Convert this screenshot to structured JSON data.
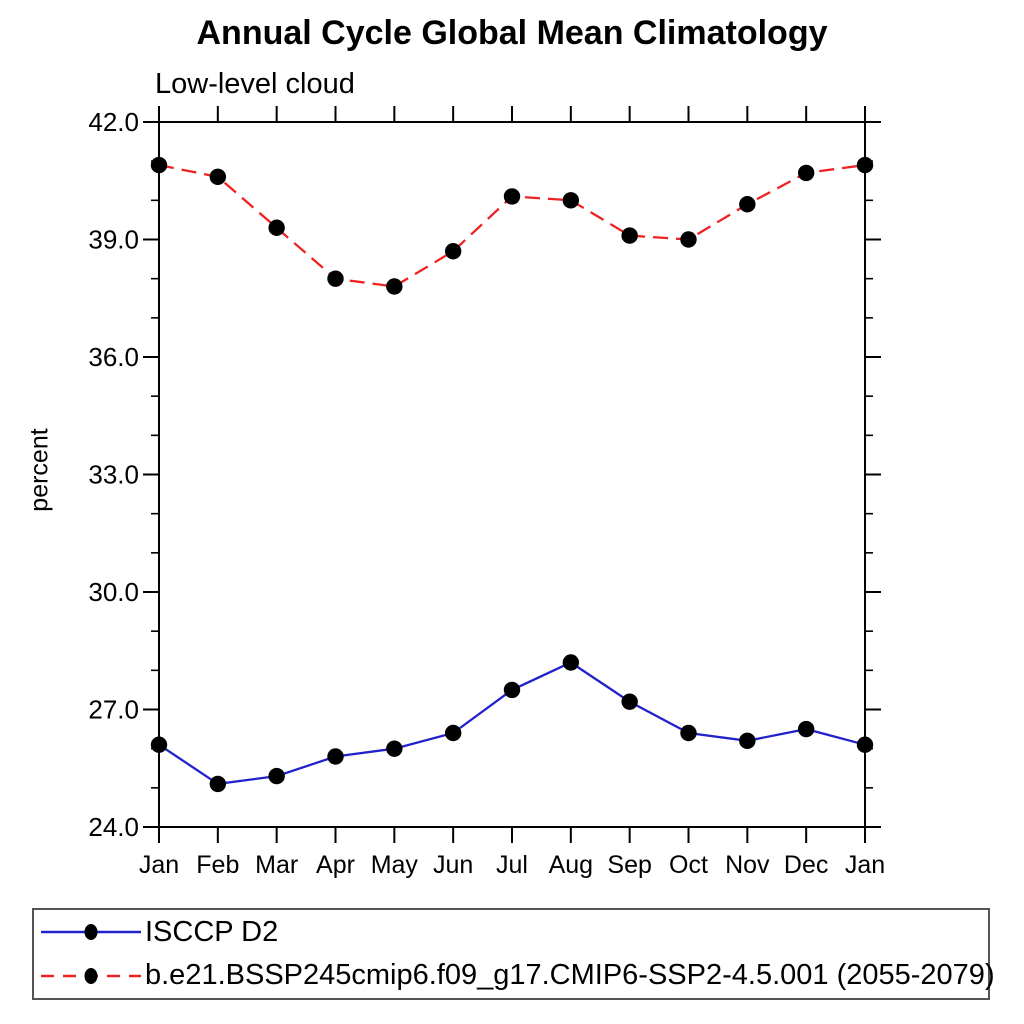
{
  "chart": {
    "title": "Annual Cycle Global Mean Climatology",
    "subtitle": "Low-level cloud",
    "ylabel": "percent"
  },
  "chart_data": {
    "type": "line",
    "title": "Annual Cycle Global Mean Climatology",
    "subtitle": "Low-level cloud",
    "xlabel": "",
    "ylabel": "percent",
    "categories": [
      "Jan",
      "Feb",
      "Mar",
      "Apr",
      "May",
      "Jun",
      "Jul",
      "Aug",
      "Sep",
      "Oct",
      "Nov",
      "Dec",
      "Jan"
    ],
    "ylim": [
      24.0,
      42.0
    ],
    "ytick_labels": [
      "24.0",
      "27.0",
      "30.0",
      "33.0",
      "36.0",
      "39.0",
      "42.0"
    ],
    "ytick_values": [
      24.0,
      27.0,
      30.0,
      33.0,
      36.0,
      39.0,
      42.0
    ],
    "minor_tick_interval": 1.0,
    "grid": false,
    "legend_position": "bottom",
    "marker_color": "#000000",
    "axis_color": "#000000",
    "series": [
      {
        "name": "ISCCP D2",
        "color": "#2222cc",
        "style": "solid",
        "marker": "circle",
        "values": [
          26.1,
          25.1,
          25.3,
          25.8,
          26.0,
          26.4,
          27.5,
          28.2,
          27.2,
          26.4,
          26.2,
          26.5,
          26.1
        ]
      },
      {
        "name": "b.e21.BSSP245cmip6.f09_g17.CMIP6-SSP2-4.5.001 (2055-2079)",
        "color": "#ee2222",
        "style": "dashed",
        "marker": "circle",
        "values": [
          40.9,
          40.6,
          39.3,
          38.0,
          37.8,
          38.7,
          40.1,
          40.0,
          39.1,
          39.0,
          39.9,
          40.7,
          40.9
        ]
      }
    ]
  }
}
